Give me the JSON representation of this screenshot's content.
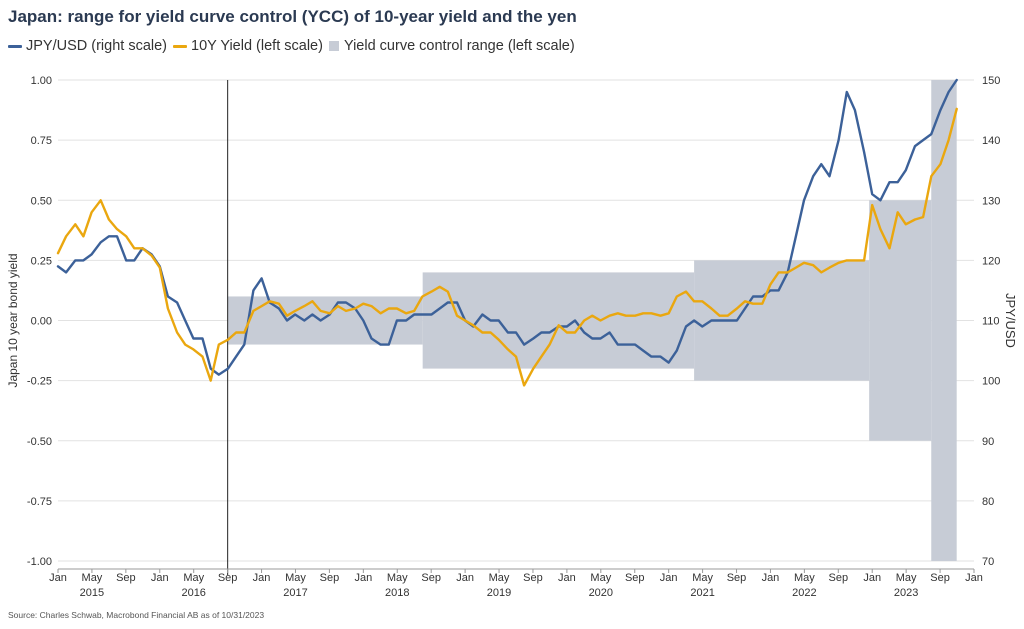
{
  "chart_data": {
    "type": "line",
    "title": "Japan: range for yield curve control (YCC) of 10-year yield and the yen",
    "colors": {
      "jpy": "#3c6199",
      "yield": "#eaa70f",
      "band": "#c7ccd6",
      "grid": "#e2e2e2",
      "title": "#2b3a52"
    },
    "legend": [
      {
        "label": "JPY/USD (right scale)",
        "kind": "line",
        "color": "#3c6199"
      },
      {
        "label": "10Y Yield (left scale)",
        "kind": "line",
        "color": "#eaa70f"
      },
      {
        "label": "Yield curve control range (left scale)",
        "kind": "box",
        "color": "#c7ccd6"
      }
    ],
    "ylabel_left": "Japan 10 year bond yield",
    "ylabel_right": "JPY/USD",
    "y_left": {
      "min": -1.0,
      "max": 1.0,
      "ticks": [
        "1.00",
        "0.75",
        "0.50",
        "0.25",
        "0.00",
        "-0.25",
        "-0.50",
        "-0.75",
        "-1.00"
      ]
    },
    "y_right": {
      "min": 70,
      "max": 150,
      "ticks": [
        "150",
        "140",
        "130",
        "120",
        "110",
        "100",
        "90",
        "80",
        "70"
      ]
    },
    "x_range": [
      2015.0,
      2024.0
    ],
    "x_month_ticks": [
      "Jan",
      "May",
      "Sep",
      "Jan",
      "May",
      "Sep",
      "Jan",
      "May",
      "Sep",
      "Jan",
      "May",
      "Sep",
      "Jan",
      "May",
      "Sep",
      "Jan",
      "May",
      "Sep",
      "Jan",
      "May",
      "Sep",
      "Jan",
      "May",
      "Sep",
      "Jan",
      "May",
      "Sep",
      "Jan"
    ],
    "x_years": [
      "2015",
      "2016",
      "2017",
      "2018",
      "2019",
      "2020",
      "2021",
      "2022",
      "2023"
    ],
    "annotation_vline_date": 2016.667,
    "ycc_range": [
      {
        "start": 2016.667,
        "end": 2018.583,
        "low": -0.1,
        "high": 0.1
      },
      {
        "start": 2018.583,
        "end": 2021.25,
        "low": -0.2,
        "high": 0.2
      },
      {
        "start": 2021.25,
        "end": 2022.97,
        "low": -0.25,
        "high": 0.25
      },
      {
        "start": 2022.97,
        "end": 2023.58,
        "low": -0.5,
        "high": 0.5
      },
      {
        "start": 2023.58,
        "end": 2023.83,
        "low": -1.0,
        "high": 1.0
      }
    ],
    "series": [
      {
        "name": "JPY/USD (right scale)",
        "axis": "right",
        "x": [
          2015.0,
          2015.08,
          2015.17,
          2015.25,
          2015.33,
          2015.42,
          2015.5,
          2015.58,
          2015.67,
          2015.75,
          2015.83,
          2015.92,
          2016.0,
          2016.08,
          2016.17,
          2016.25,
          2016.33,
          2016.42,
          2016.5,
          2016.58,
          2016.67,
          2016.75,
          2016.83,
          2016.92,
          2017.0,
          2017.08,
          2017.17,
          2017.25,
          2017.33,
          2017.42,
          2017.5,
          2017.58,
          2017.67,
          2017.75,
          2017.83,
          2017.92,
          2018.0,
          2018.08,
          2018.17,
          2018.25,
          2018.33,
          2018.42,
          2018.5,
          2018.58,
          2018.67,
          2018.75,
          2018.83,
          2018.92,
          2019.0,
          2019.08,
          2019.17,
          2019.25,
          2019.33,
          2019.42,
          2019.5,
          2019.58,
          2019.67,
          2019.75,
          2019.83,
          2019.92,
          2020.0,
          2020.08,
          2020.17,
          2020.25,
          2020.33,
          2020.42,
          2020.5,
          2020.58,
          2020.67,
          2020.75,
          2020.83,
          2020.92,
          2021.0,
          2021.08,
          2021.17,
          2021.25,
          2021.33,
          2021.42,
          2021.5,
          2021.58,
          2021.67,
          2021.75,
          2021.83,
          2021.92,
          2022.0,
          2022.08,
          2022.17,
          2022.25,
          2022.33,
          2022.42,
          2022.5,
          2022.58,
          2022.67,
          2022.75,
          2022.83,
          2022.92,
          2023.0,
          2023.08,
          2023.17,
          2023.25,
          2023.33,
          2023.42,
          2023.5,
          2023.58,
          2023.67,
          2023.75,
          2023.83
        ],
        "values": [
          119,
          118,
          120,
          120,
          121,
          123,
          124,
          124,
          120,
          120,
          122,
          121,
          119,
          114,
          113,
          110,
          107,
          107,
          102,
          101,
          102,
          104,
          106,
          115,
          117,
          113,
          112,
          110,
          111,
          110,
          111,
          110,
          111,
          113,
          113,
          112,
          110,
          107,
          106,
          106,
          110,
          110,
          111,
          111,
          111,
          112,
          113,
          113,
          110,
          109,
          111,
          110,
          110,
          108,
          108,
          106,
          107,
          108,
          108,
          109,
          109,
          110,
          108,
          107,
          107,
          108,
          106,
          106,
          106,
          105,
          104,
          104,
          103,
          105,
          109,
          110,
          109,
          110,
          110,
          110,
          110,
          112,
          114,
          114,
          115,
          115,
          118,
          124,
          130,
          134,
          136,
          134,
          140,
          148,
          145,
          138,
          131,
          130,
          133,
          133,
          135,
          139,
          140,
          141,
          145,
          148,
          150
        ]
      },
      {
        "name": "10Y Yield (left scale)",
        "axis": "left",
        "x": [
          2015.0,
          2015.08,
          2015.17,
          2015.25,
          2015.33,
          2015.42,
          2015.5,
          2015.58,
          2015.67,
          2015.75,
          2015.83,
          2015.92,
          2016.0,
          2016.08,
          2016.17,
          2016.25,
          2016.33,
          2016.42,
          2016.5,
          2016.58,
          2016.67,
          2016.75,
          2016.83,
          2016.92,
          2017.0,
          2017.08,
          2017.17,
          2017.25,
          2017.33,
          2017.42,
          2017.5,
          2017.58,
          2017.67,
          2017.75,
          2017.83,
          2017.92,
          2018.0,
          2018.08,
          2018.17,
          2018.25,
          2018.33,
          2018.42,
          2018.5,
          2018.58,
          2018.67,
          2018.75,
          2018.83,
          2018.92,
          2019.0,
          2019.08,
          2019.17,
          2019.25,
          2019.33,
          2019.42,
          2019.5,
          2019.58,
          2019.67,
          2019.75,
          2019.83,
          2019.92,
          2020.0,
          2020.08,
          2020.17,
          2020.25,
          2020.33,
          2020.42,
          2020.5,
          2020.58,
          2020.67,
          2020.75,
          2020.83,
          2020.92,
          2021.0,
          2021.08,
          2021.17,
          2021.25,
          2021.33,
          2021.42,
          2021.5,
          2021.58,
          2021.67,
          2021.75,
          2021.83,
          2021.92,
          2022.0,
          2022.08,
          2022.17,
          2022.25,
          2022.33,
          2022.42,
          2022.5,
          2022.58,
          2022.67,
          2022.75,
          2022.83,
          2022.92,
          2023.0,
          2023.08,
          2023.17,
          2023.25,
          2023.33,
          2023.42,
          2023.5,
          2023.58,
          2023.67,
          2023.75,
          2023.83
        ],
        "values": [
          0.28,
          0.35,
          0.4,
          0.35,
          0.45,
          0.5,
          0.42,
          0.38,
          0.35,
          0.3,
          0.3,
          0.27,
          0.22,
          0.05,
          -0.05,
          -0.1,
          -0.12,
          -0.15,
          -0.25,
          -0.1,
          -0.08,
          -0.05,
          -0.05,
          0.04,
          0.06,
          0.08,
          0.07,
          0.02,
          0.04,
          0.06,
          0.08,
          0.04,
          0.03,
          0.06,
          0.04,
          0.05,
          0.07,
          0.06,
          0.03,
          0.05,
          0.05,
          0.03,
          0.04,
          0.1,
          0.12,
          0.14,
          0.12,
          0.02,
          0.0,
          -0.02,
          -0.05,
          -0.05,
          -0.08,
          -0.12,
          -0.15,
          -0.27,
          -0.2,
          -0.15,
          -0.1,
          -0.02,
          -0.05,
          -0.05,
          0.0,
          0.02,
          0.0,
          0.02,
          0.03,
          0.02,
          0.02,
          0.03,
          0.03,
          0.02,
          0.03,
          0.1,
          0.12,
          0.08,
          0.08,
          0.05,
          0.02,
          0.02,
          0.05,
          0.08,
          0.07,
          0.07,
          0.15,
          0.2,
          0.2,
          0.22,
          0.24,
          0.23,
          0.2,
          0.22,
          0.24,
          0.25,
          0.25,
          0.25,
          0.48,
          0.38,
          0.3,
          0.45,
          0.4,
          0.42,
          0.43,
          0.6,
          0.65,
          0.75,
          0.88
        ]
      }
    ],
    "source": "Source: Charles Schwab, Macrobond Financial AB as of 10/31/2023"
  }
}
